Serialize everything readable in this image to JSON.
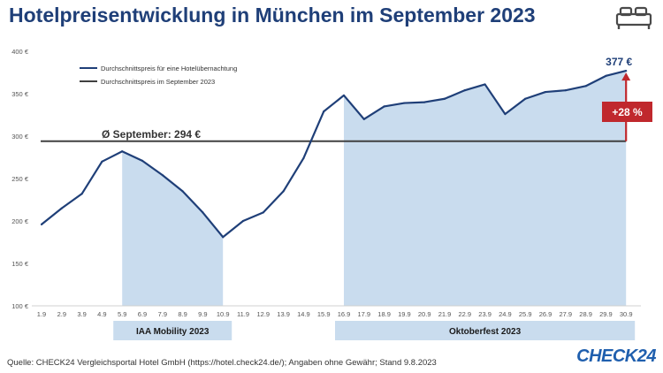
{
  "header": {
    "title": "Hotelpreisentwicklung in München im September 2023"
  },
  "icons": {
    "bed": "bed-icon"
  },
  "footer": {
    "source": "Quelle: CHECK24 Vergleichsportal Hotel GmbH (https://hotel.check24.de/); Angaben ohne Gewähr; Stand 9.8.2023",
    "brand": "CHECK24"
  },
  "colors": {
    "line": "#1f3f78",
    "avg_line": "#404040",
    "shade": "#c9dcee",
    "accent": "#c0282d",
    "brand": "#1f5fae"
  },
  "chart_data": {
    "type": "line",
    "title": "Hotelpreisentwicklung in München im September 2023",
    "ylim": [
      100,
      400
    ],
    "yticks": [
      100,
      150,
      200,
      250,
      300,
      350,
      400
    ],
    "ytick_labels": [
      "100 €",
      "150 €",
      "200 €",
      "250 €",
      "300 €",
      "350 €",
      "400 €"
    ],
    "categories": [
      "1.9",
      "2.9",
      "3.9",
      "4.9",
      "5.9",
      "6.9",
      "7.9",
      "8.9",
      "9.9",
      "10.9",
      "11.9",
      "12.9",
      "13.9",
      "14.9",
      "15.9",
      "16.9",
      "17.9",
      "18.9",
      "19.9",
      "20.9",
      "21.9",
      "22.9",
      "23.9",
      "24.9",
      "25.9",
      "26.9",
      "27.9",
      "28.9",
      "29.9",
      "30.9"
    ],
    "series": [
      {
        "name": "Durchschnittspreis für eine Hotelübernachtung",
        "values": [
          196,
          215,
          232,
          270,
          282,
          271,
          254,
          235,
          210,
          181,
          200,
          210,
          235,
          274,
          329,
          348,
          320,
          335,
          339,
          340,
          344,
          354,
          361,
          326,
          344,
          352,
          354,
          359,
          371,
          377
        ]
      }
    ],
    "reference_line": {
      "name": "Durchschnittspreis im September 2023",
      "value": 294,
      "label": "Ø September: 294 €"
    },
    "highlight_ranges": [
      {
        "label": "IAA Mobility 2023",
        "start": "5.9",
        "end": "10.9"
      },
      {
        "label": "Oktoberfest 2023",
        "start": "16.9",
        "end": "30.9"
      }
    ],
    "annotations": {
      "end_value_label": "377 €",
      "change_label": "+28 %"
    },
    "legend_position": "top-left",
    "grid": false
  }
}
